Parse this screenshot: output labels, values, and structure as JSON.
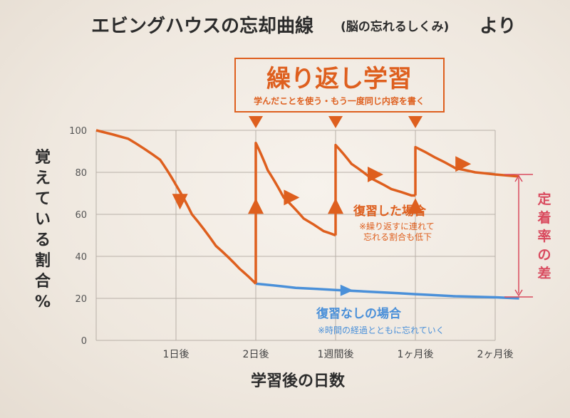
{
  "title": {
    "main": "エビングハウスの忘却曲線",
    "paren": "(脳の忘れるしくみ)",
    "suffix": "より"
  },
  "repeat_box": {
    "title": "繰り返し学習",
    "subtitle": "学んだことを使う・もう一度同じ内容を書く"
  },
  "annotations": {
    "reviewed_title": "復習した場合",
    "reviewed_note_1": "※繰り返すに連れて",
    "reviewed_note_2": "忘れる割合も低下",
    "not_reviewed_title": "復習なしの場合",
    "not_reviewed_note": "※時間の経過とともに忘れていく",
    "retention_diff": "定着率の差"
  },
  "colors": {
    "reviewed": "#de5f1e",
    "not_reviewed": "#4a90d9",
    "retention": "#d94a5e",
    "grid": "#b8b0a8"
  },
  "chart_data": {
    "type": "line",
    "title": "エビングハウスの忘却曲線",
    "xlabel": "学習後の日数",
    "ylabel": "覚えている割合%",
    "ylim": [
      0,
      100
    ],
    "yticks": [
      0,
      20,
      40,
      60,
      80,
      100
    ],
    "categories": [
      "1日後",
      "2日後",
      "1週間後",
      "1ヶ月後",
      "2ヶ月後"
    ],
    "xlim": [
      0,
      5
    ],
    "grid": true,
    "review_points": [
      2,
      3,
      4
    ],
    "series": [
      {
        "name": "復習した場合",
        "color": "#de5f1e",
        "segments": [
          [
            [
              0,
              100
            ],
            [
              0.4,
              96
            ],
            [
              0.8,
              86
            ],
            [
              1.0,
              74
            ],
            [
              1.2,
              60
            ],
            [
              1.5,
              45
            ],
            [
              1.8,
              34
            ],
            [
              2.0,
              27
            ]
          ],
          [
            [
              2.0,
              27
            ],
            [
              2.0,
              94
            ],
            [
              2.15,
              81
            ],
            [
              2.35,
              68
            ],
            [
              2.6,
              58
            ],
            [
              2.85,
              52
            ],
            [
              3.0,
              50
            ]
          ],
          [
            [
              3.0,
              50
            ],
            [
              3.0,
              93
            ],
            [
              3.2,
              84
            ],
            [
              3.45,
              77
            ],
            [
              3.7,
              72
            ],
            [
              3.95,
              69
            ],
            [
              4.0,
              69
            ]
          ],
          [
            [
              4.0,
              69
            ],
            [
              4.0,
              92
            ],
            [
              4.25,
              87
            ],
            [
              4.5,
              82
            ],
            [
              4.75,
              80
            ],
            [
              5.0,
              79
            ],
            [
              5.3,
              78
            ]
          ]
        ]
      },
      {
        "name": "復習なしの場合",
        "color": "#4a90d9",
        "values": [
          [
            2.0,
            27
          ],
          [
            2.5,
            25
          ],
          [
            3.0,
            24
          ],
          [
            3.5,
            23
          ],
          [
            4.0,
            22
          ],
          [
            4.5,
            21
          ],
          [
            5.0,
            20.5
          ],
          [
            5.3,
            20
          ]
        ]
      }
    ]
  }
}
